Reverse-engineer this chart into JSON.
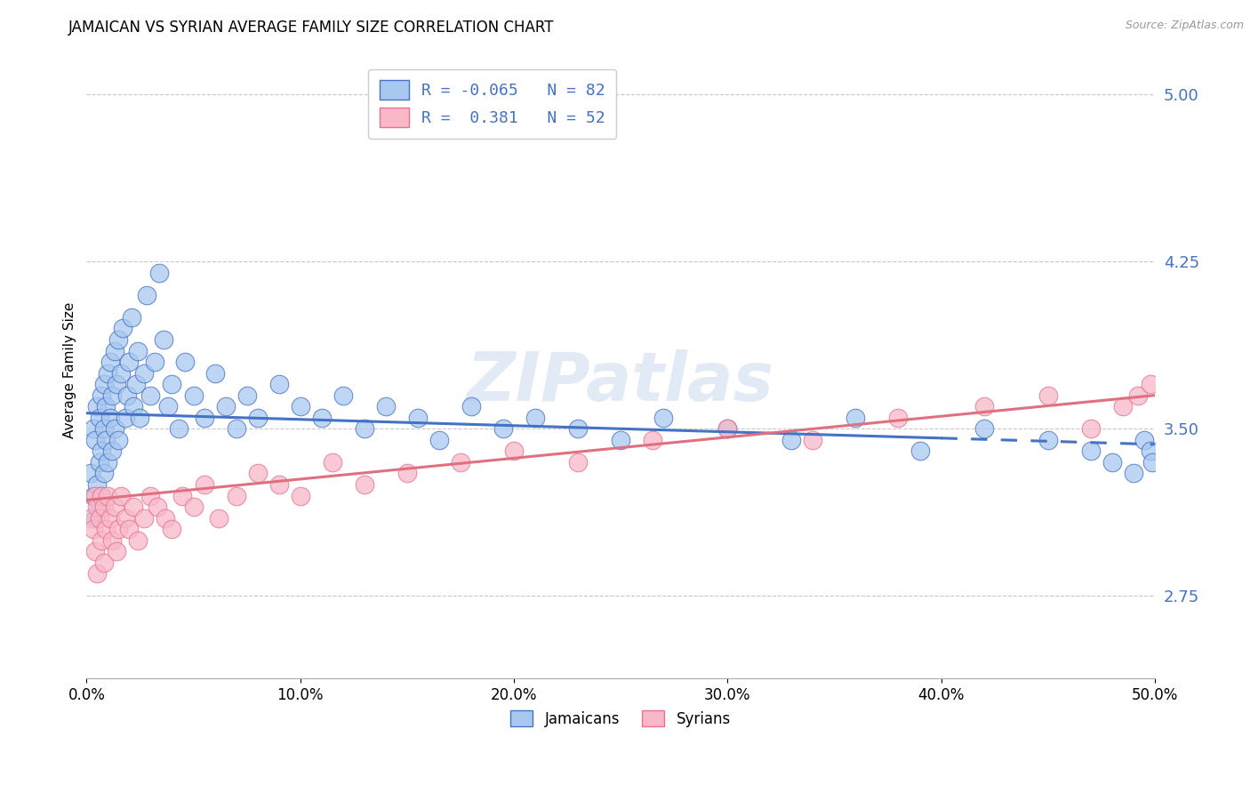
{
  "title": "JAMAICAN VS SYRIAN AVERAGE FAMILY SIZE CORRELATION CHART",
  "source": "Source: ZipAtlas.com",
  "ylabel": "Average Family Size",
  "yticks": [
    2.75,
    3.5,
    4.25,
    5.0
  ],
  "xlim": [
    0.0,
    0.5
  ],
  "ylim": [
    2.38,
    5.15
  ],
  "background_color": "#ffffff",
  "grid_color": "#c8c8c8",
  "jamaican_color": "#a8c8f0",
  "jamaican_edge_color": "#4472c4",
  "syrian_color": "#f8b8c8",
  "syrian_edge_color": "#e87090",
  "jamaican_line_color": "#4472c4",
  "syrian_line_color": "#e07080",
  "jamaican_R": -0.065,
  "jamaican_N": 82,
  "syrian_R": 0.381,
  "syrian_N": 52,
  "watermark": "ZIPatlas",
  "title_fontsize": 12,
  "axis_label_fontsize": 11,
  "tick_fontsize": 12,
  "legend_fontsize": 13,
  "jamaican_x": [
    0.002,
    0.003,
    0.003,
    0.004,
    0.004,
    0.005,
    0.005,
    0.006,
    0.006,
    0.006,
    0.007,
    0.007,
    0.007,
    0.008,
    0.008,
    0.008,
    0.009,
    0.009,
    0.01,
    0.01,
    0.011,
    0.011,
    0.012,
    0.012,
    0.013,
    0.013,
    0.014,
    0.015,
    0.015,
    0.016,
    0.017,
    0.018,
    0.019,
    0.02,
    0.021,
    0.022,
    0.023,
    0.024,
    0.025,
    0.027,
    0.028,
    0.03,
    0.032,
    0.034,
    0.036,
    0.038,
    0.04,
    0.043,
    0.046,
    0.05,
    0.055,
    0.06,
    0.065,
    0.07,
    0.075,
    0.08,
    0.09,
    0.1,
    0.11,
    0.12,
    0.13,
    0.14,
    0.155,
    0.165,
    0.18,
    0.195,
    0.21,
    0.23,
    0.25,
    0.27,
    0.3,
    0.33,
    0.36,
    0.39,
    0.42,
    0.45,
    0.47,
    0.48,
    0.49,
    0.495,
    0.498,
    0.499
  ],
  "jamaican_y": [
    3.3,
    3.5,
    3.2,
    3.45,
    3.1,
    3.6,
    3.25,
    3.55,
    3.35,
    3.15,
    3.65,
    3.4,
    3.2,
    3.7,
    3.5,
    3.3,
    3.6,
    3.45,
    3.75,
    3.35,
    3.8,
    3.55,
    3.65,
    3.4,
    3.85,
    3.5,
    3.7,
    3.9,
    3.45,
    3.75,
    3.95,
    3.55,
    3.65,
    3.8,
    4.0,
    3.6,
    3.7,
    3.85,
    3.55,
    3.75,
    4.1,
    3.65,
    3.8,
    4.2,
    3.9,
    3.6,
    3.7,
    3.5,
    3.8,
    3.65,
    3.55,
    3.75,
    3.6,
    3.5,
    3.65,
    3.55,
    3.7,
    3.6,
    3.55,
    3.65,
    3.5,
    3.6,
    3.55,
    3.45,
    3.6,
    3.5,
    3.55,
    3.5,
    3.45,
    3.55,
    3.5,
    3.45,
    3.55,
    3.4,
    3.5,
    3.45,
    3.4,
    3.35,
    3.3,
    3.45,
    3.4,
    3.35
  ],
  "syrian_x": [
    0.002,
    0.003,
    0.004,
    0.004,
    0.005,
    0.005,
    0.006,
    0.007,
    0.007,
    0.008,
    0.008,
    0.009,
    0.01,
    0.011,
    0.012,
    0.013,
    0.014,
    0.015,
    0.016,
    0.018,
    0.02,
    0.022,
    0.024,
    0.027,
    0.03,
    0.033,
    0.037,
    0.04,
    0.045,
    0.05,
    0.055,
    0.062,
    0.07,
    0.08,
    0.09,
    0.1,
    0.115,
    0.13,
    0.15,
    0.175,
    0.2,
    0.23,
    0.265,
    0.3,
    0.34,
    0.38,
    0.42,
    0.45,
    0.47,
    0.485,
    0.492,
    0.498
  ],
  "syrian_y": [
    3.1,
    3.05,
    3.2,
    2.95,
    3.15,
    2.85,
    3.1,
    3.2,
    3.0,
    3.15,
    2.9,
    3.05,
    3.2,
    3.1,
    3.0,
    3.15,
    2.95,
    3.05,
    3.2,
    3.1,
    3.05,
    3.15,
    3.0,
    3.1,
    3.2,
    3.15,
    3.1,
    3.05,
    3.2,
    3.15,
    3.25,
    3.1,
    3.2,
    3.3,
    3.25,
    3.2,
    3.35,
    3.25,
    3.3,
    3.35,
    3.4,
    3.35,
    3.45,
    3.5,
    3.45,
    3.55,
    3.6,
    3.65,
    3.5,
    3.6,
    3.65,
    3.7
  ]
}
